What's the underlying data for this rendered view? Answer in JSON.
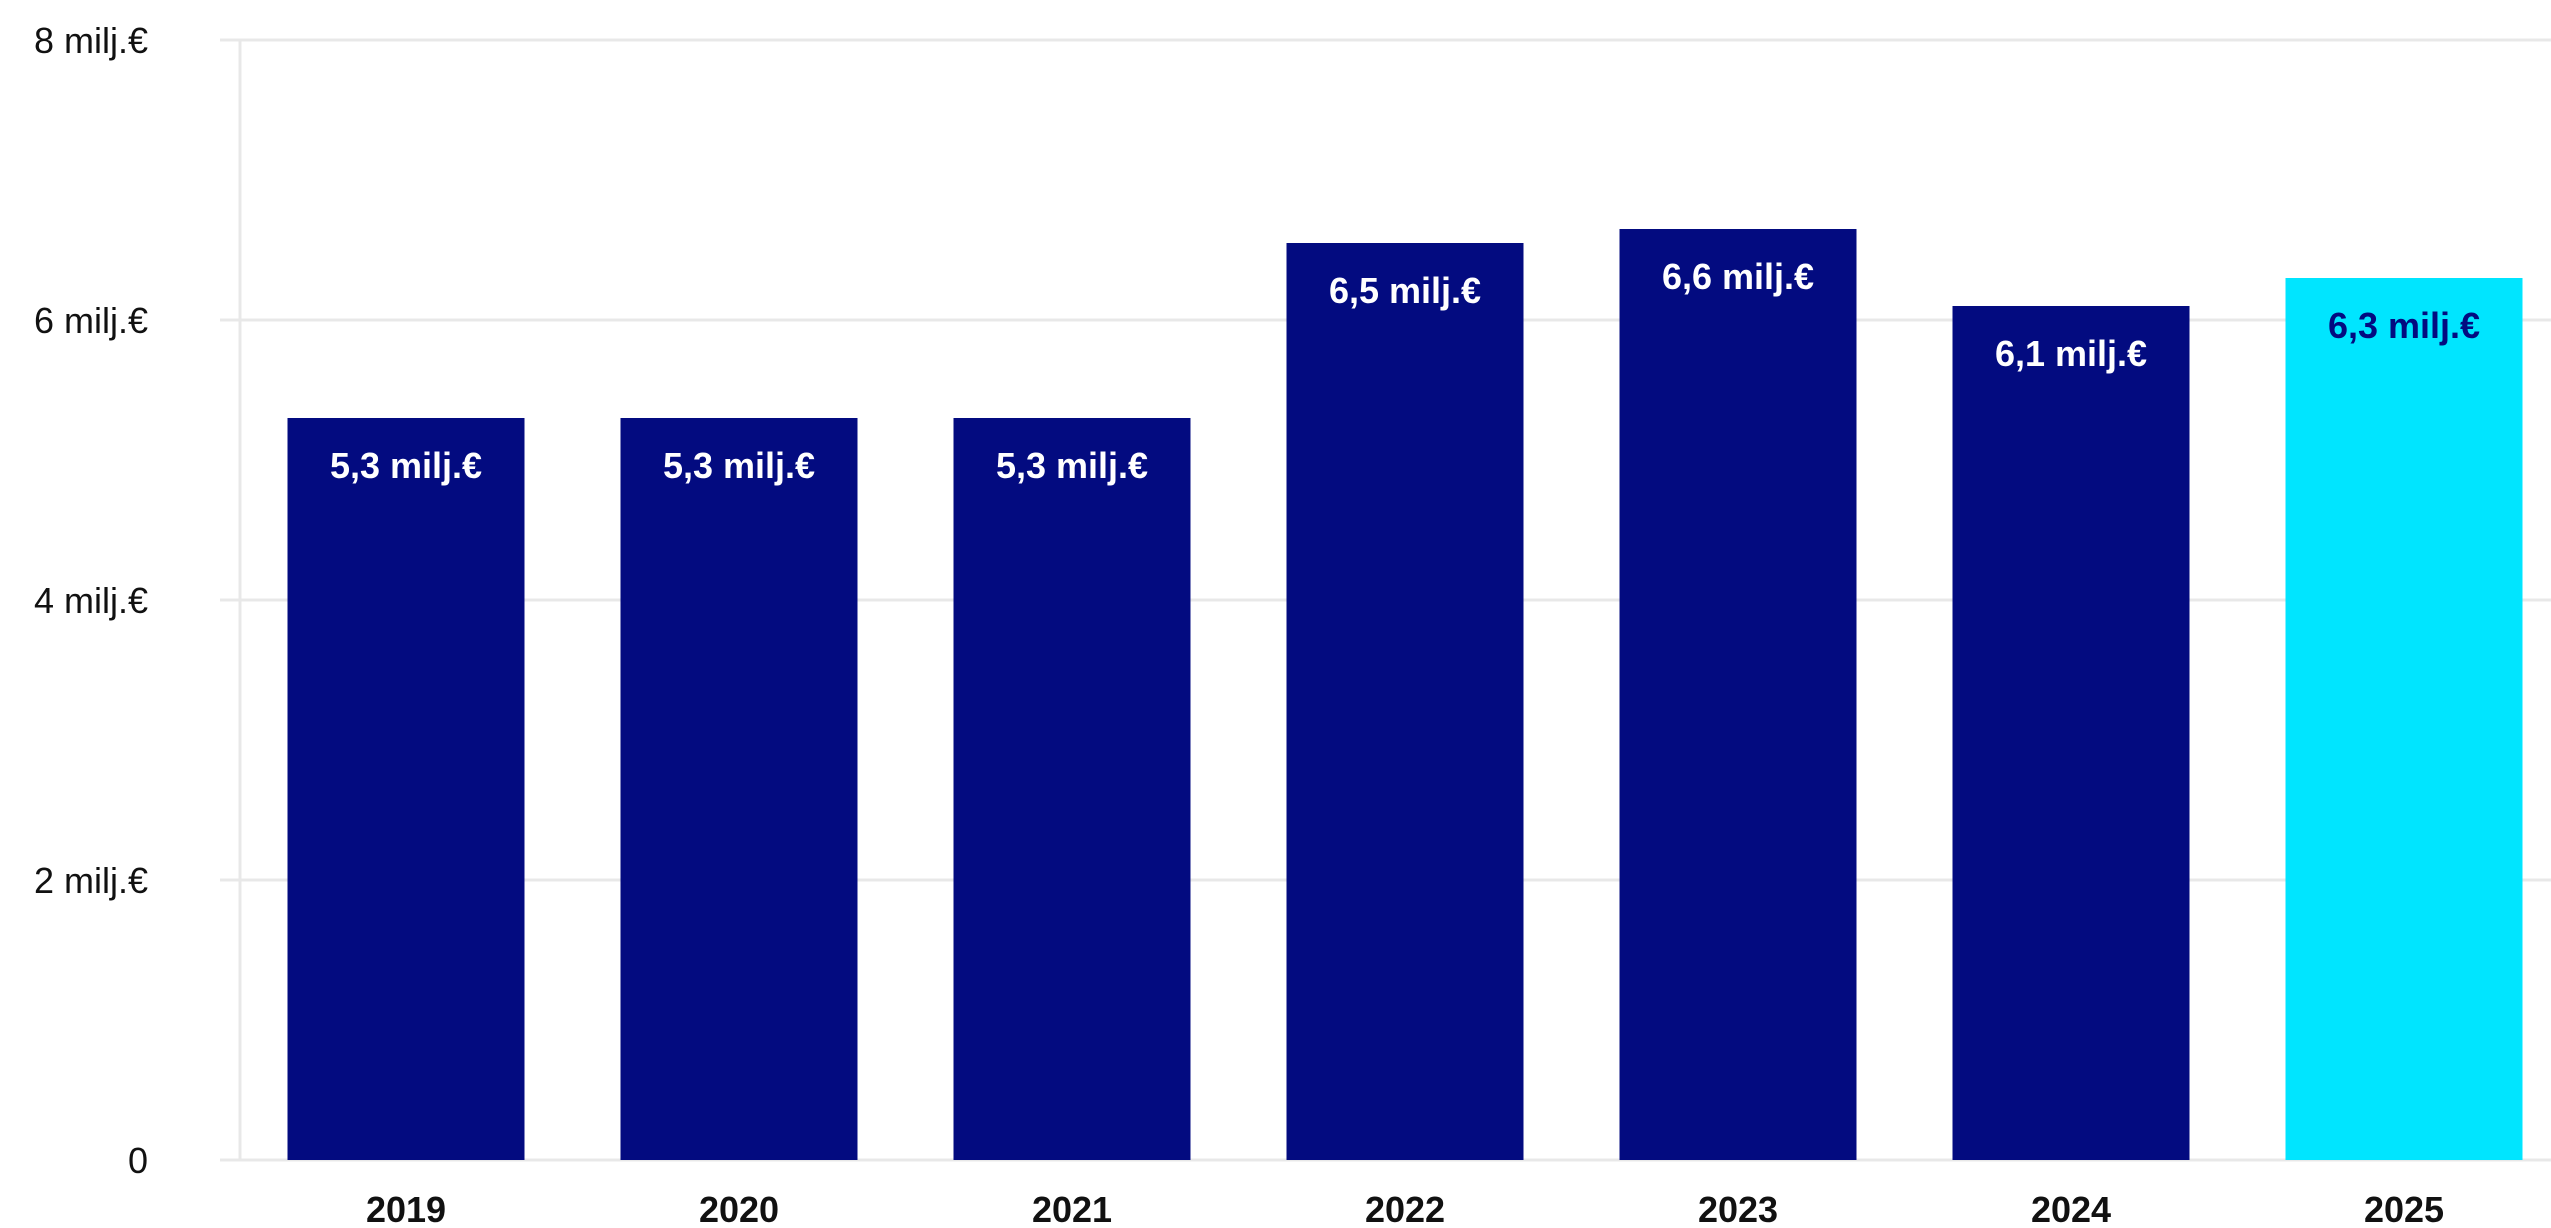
{
  "chart_data": {
    "type": "bar",
    "title": "",
    "xlabel": "",
    "ylabel": "",
    "categories": [
      "2019",
      "2020",
      "2021",
      "2022",
      "2023",
      "2024",
      "2025"
    ],
    "values": [
      5.3,
      5.3,
      5.3,
      6.55,
      6.65,
      6.1,
      6.3
    ],
    "data_labels": [
      "5,3 milj.€",
      "5,3 milj.€",
      "5,3 milj.€",
      "6,5 milj.€",
      "6,6 milj.€",
      "6,1 milj.€",
      "6,3 milj.€"
    ],
    "ylim": [
      0,
      8
    ],
    "yticks": [
      0,
      2,
      4,
      6,
      8
    ],
    "ytick_labels": [
      "0",
      "2 milj.€",
      "4 milj.€",
      "6 milj.€",
      "8 milj.€"
    ],
    "grid": true,
    "legend": "none",
    "colors": {
      "bar": "#030b80",
      "highlight_bar": "#00e5ff",
      "label_on_bar": "#ffffff",
      "label_on_highlight": "#030b80",
      "grid": "#e8e8e8"
    },
    "highlight_index": 6
  }
}
